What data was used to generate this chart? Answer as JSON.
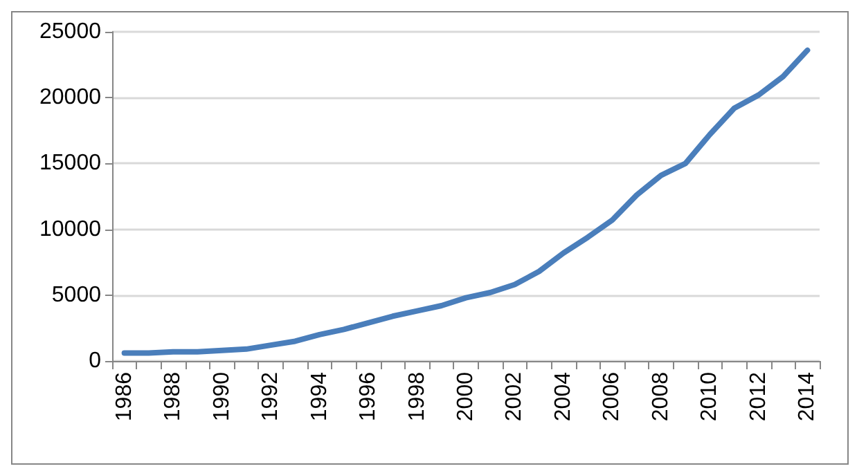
{
  "chart_data": {
    "type": "line",
    "categories": [
      "1986",
      null,
      "1988",
      null,
      "1990",
      null,
      "1992",
      null,
      "1994",
      null,
      "1996",
      null,
      "1998",
      null,
      "2000",
      null,
      "2002",
      null,
      "2004",
      null,
      "2006",
      null,
      "2008",
      null,
      "2010",
      null,
      "2012",
      null,
      "2014"
    ],
    "series": [
      {
        "color": "#4a7ebb",
        "values": [
          600,
          600,
          700,
          700,
          800,
          900,
          1200,
          1500,
          2000,
          2400,
          2900,
          3400,
          3800,
          4200,
          4800,
          5200,
          5800,
          6800,
          8200,
          9400,
          10700,
          12600,
          14100,
          15000,
          17200,
          19200,
          20200,
          21600,
          23600
        ]
      }
    ],
    "ylim": [
      0,
      25000
    ],
    "yticks": [
      0,
      5000,
      10000,
      15000,
      20000,
      25000
    ],
    "grid": "y",
    "marker": "none",
    "line_style": "solid"
  }
}
